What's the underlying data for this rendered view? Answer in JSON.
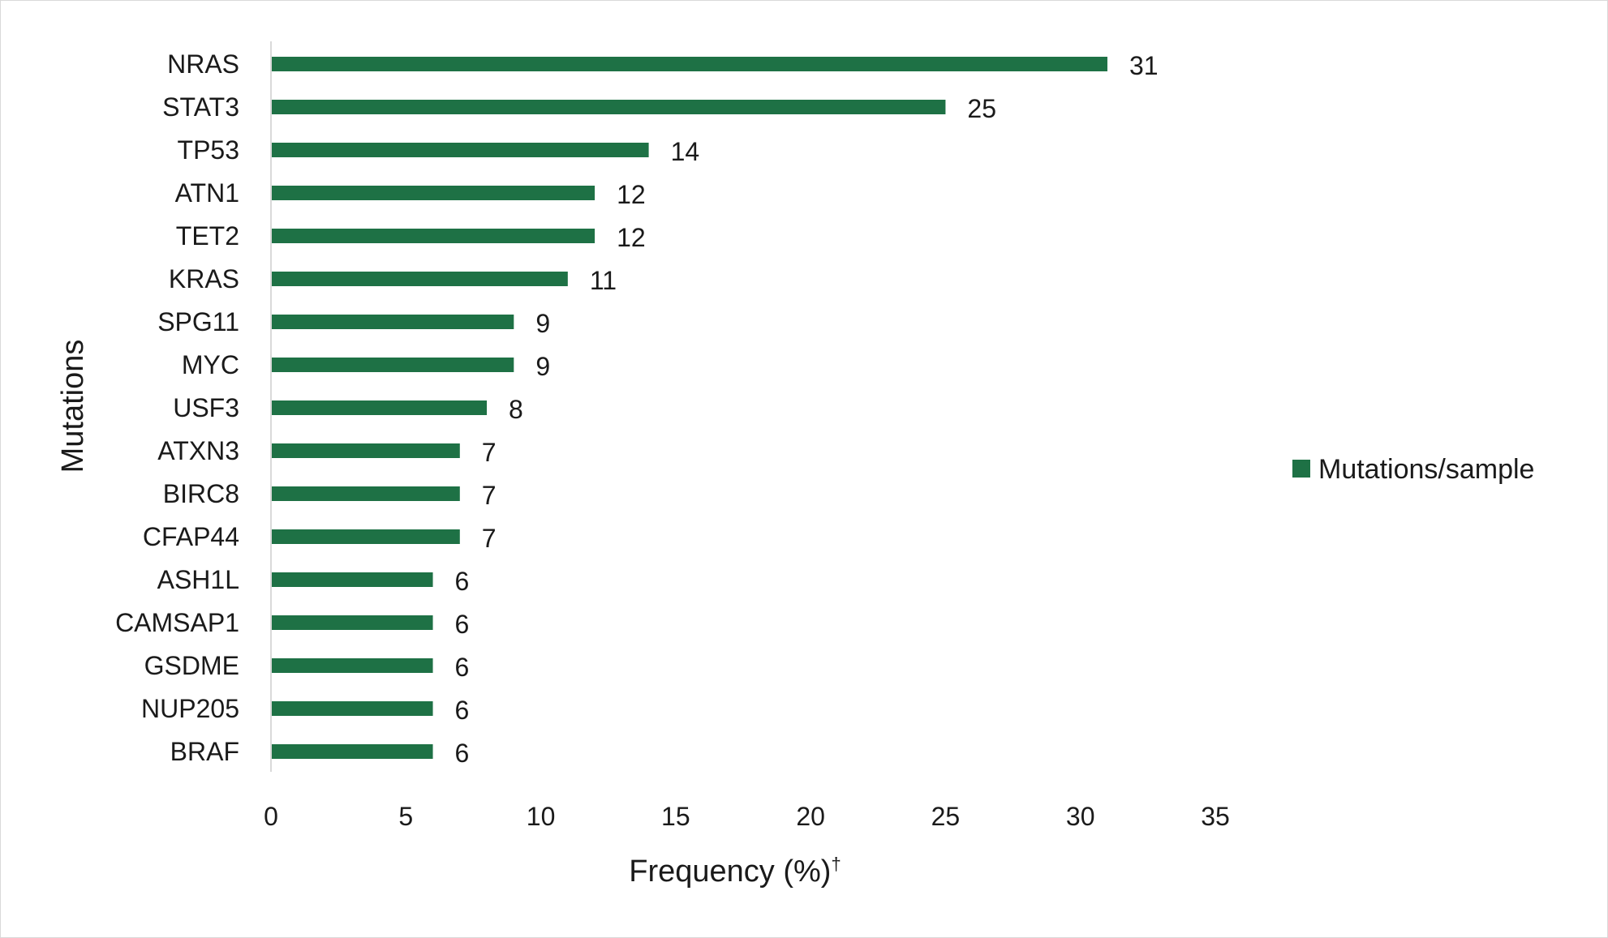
{
  "chart_data": {
    "type": "bar",
    "orientation": "horizontal",
    "categories": [
      "NRAS",
      "STAT3",
      "TP53",
      "ATN1",
      "TET2",
      "KRAS",
      "SPG11",
      "MYC",
      "USF3",
      "ATXN3",
      "BIRC8",
      "CFAP44",
      "ASH1L",
      "CAMSAP1",
      "GSDME",
      "NUP205",
      "BRAF"
    ],
    "series": [
      {
        "name": "Mutations/sample",
        "values": [
          31,
          25,
          14,
          12,
          12,
          11,
          9,
          9,
          8,
          7,
          7,
          7,
          6,
          6,
          6,
          6,
          6
        ],
        "color": "#1e7145"
      }
    ],
    "xlabel": "Frequency (%)",
    "xlabel_superscript": "†",
    "ylabel": "Mutations",
    "xlim": [
      0,
      35
    ],
    "xticks": [
      0,
      5,
      10,
      15,
      20,
      25,
      30,
      35
    ],
    "data_labels": true,
    "grid": false,
    "legend_position": "right"
  }
}
